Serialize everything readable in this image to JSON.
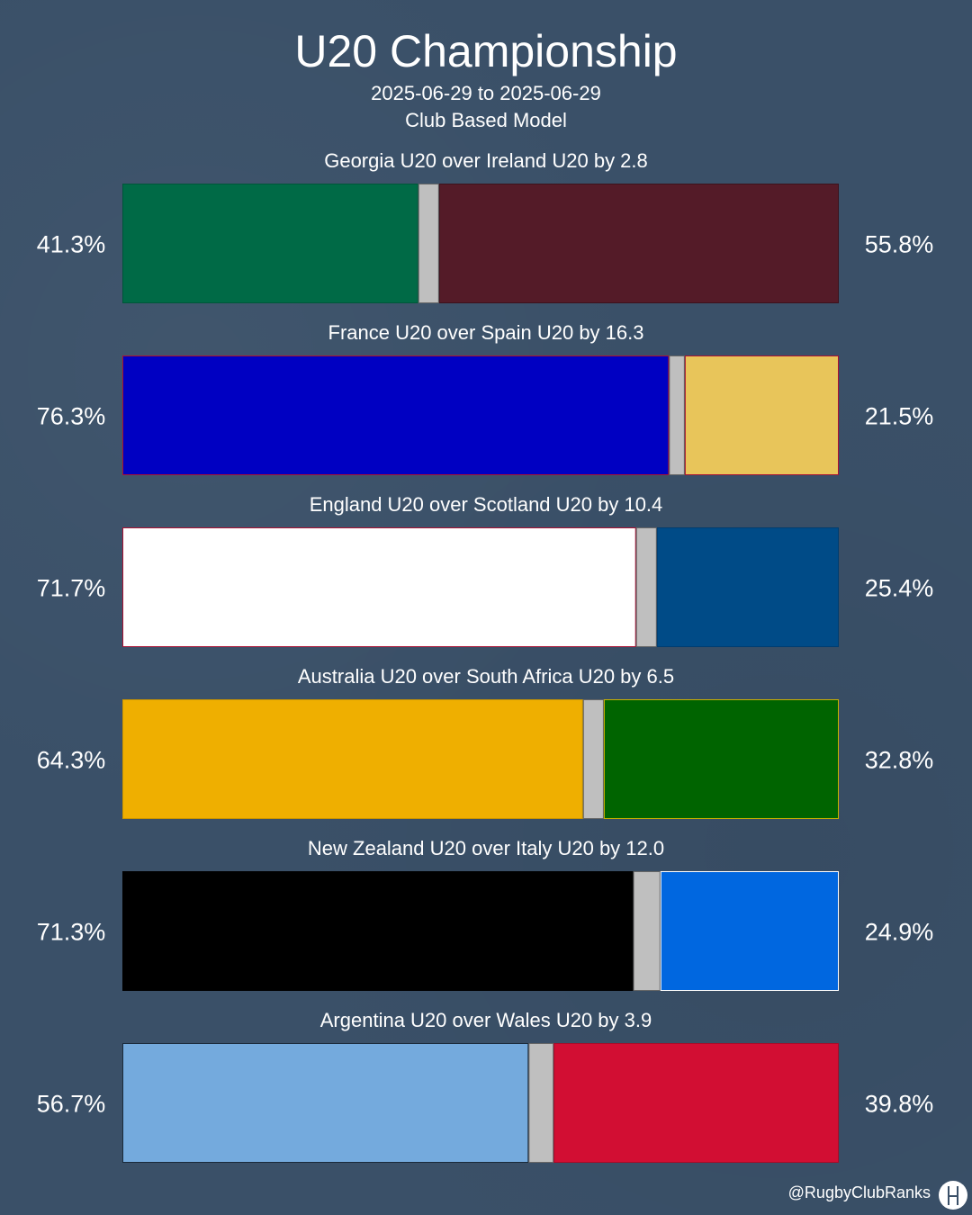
{
  "header": {
    "title": "U20 Championship",
    "date_range": "2025-06-29 to 2025-06-29",
    "model": "Club Based Model"
  },
  "footer": {
    "handle": "@RugbyClubRanks",
    "logo_icon": "rugby-posts-logo-icon"
  },
  "chart_data": {
    "type": "bar",
    "orientation": "horizontal-stacked-100",
    "grid": false,
    "legend": "none",
    "matches": [
      {
        "label": "Georgia U20 over Ireland U20 by 2.8",
        "home_pct": 41.3,
        "away_pct": 55.8,
        "home_label": "41.3%",
        "away_label": "55.8%",
        "home_color": "#006a46",
        "away_color": "#541b28",
        "home_border": "#00563a",
        "away_border": "#3c121c"
      },
      {
        "label": "France U20 over Spain U20 by 16.3",
        "home_pct": 76.3,
        "away_pct": 21.5,
        "home_label": "76.3%",
        "away_label": "21.5%",
        "home_color": "#0000c2",
        "away_color": "#e8c55a",
        "home_border": "#aa1133",
        "away_border": "#aa1133"
      },
      {
        "label": "England U20 over Scotland U20 by 10.4",
        "home_pct": 71.7,
        "away_pct": 25.4,
        "home_label": "71.7%",
        "away_label": "25.4%",
        "home_color": "#ffffff",
        "away_color": "#004b87",
        "home_border": "#aa1133",
        "away_border": "#003d70"
      },
      {
        "label": "Australia U20 over South Africa U20 by 6.5",
        "home_pct": 64.3,
        "away_pct": 32.8,
        "home_label": "64.3%",
        "away_label": "32.8%",
        "home_color": "#efaf00",
        "away_color": "#006400",
        "home_border": "#c99400",
        "away_border": "#c9b100"
      },
      {
        "label": "New Zealand U20 over Italy U20 by 12.0",
        "home_pct": 71.3,
        "away_pct": 24.9,
        "home_label": "71.3%",
        "away_label": "24.9%",
        "home_color": "#000000",
        "away_color": "#0067e0",
        "home_border": "#000000",
        "away_border": "#ffffff"
      },
      {
        "label": "Argentina U20 over Wales U20 by 3.9",
        "home_pct": 56.7,
        "away_pct": 39.8,
        "home_label": "56.7%",
        "away_label": "39.8%",
        "home_color": "#74aadd",
        "away_color": "#d20e33",
        "home_border": "#1a2a3a",
        "away_border": "#a80a28"
      }
    ],
    "draw_color": "#bfbfbf"
  }
}
